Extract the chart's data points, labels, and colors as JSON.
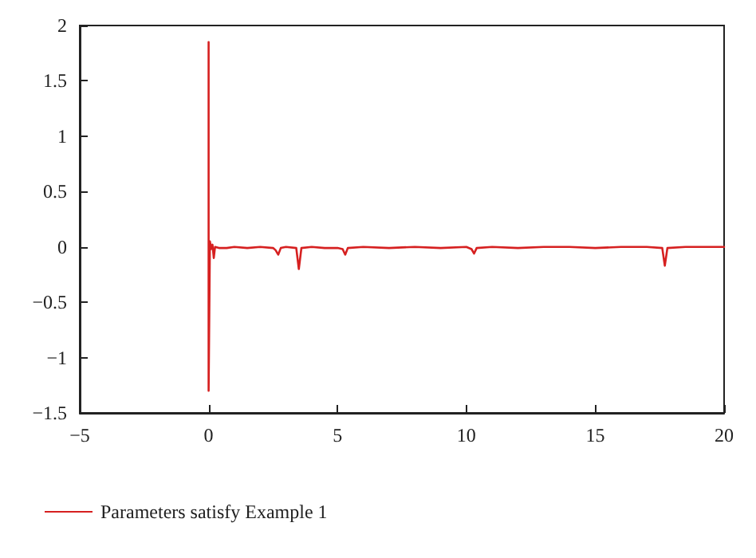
{
  "chart_data": {
    "type": "line",
    "x": [
      0,
      0,
      0,
      0.05,
      0.1,
      0.15,
      0.2,
      0.25,
      0.4,
      0.7,
      1,
      1.5,
      2,
      2.5,
      2.6,
      2.7,
      2.8,
      3,
      3.4,
      3.5,
      3.6,
      4,
      4.5,
      5,
      5.2,
      5.3,
      5.4,
      6,
      7,
      8,
      9,
      10,
      10.2,
      10.3,
      10.4,
      11,
      12,
      13,
      14,
      15,
      16,
      17,
      17.6,
      17.7,
      17.8,
      18.5,
      19,
      20
    ],
    "series": [
      {
        "name": "Parameters satisfy Example 1",
        "color": "#d62020",
        "values": [
          0.2,
          1.85,
          -1.3,
          0.05,
          -0.02,
          0.02,
          -0.1,
          0,
          -0.01,
          -0.01,
          0,
          -0.01,
          0,
          -0.01,
          -0.03,
          -0.07,
          -0.01,
          0,
          -0.01,
          -0.2,
          -0.01,
          0,
          -0.01,
          -0.01,
          -0.02,
          -0.07,
          -0.01,
          0,
          -0.01,
          0,
          -0.01,
          0,
          -0.02,
          -0.06,
          -0.01,
          0,
          -0.01,
          0,
          0,
          -0.01,
          0,
          0,
          -0.01,
          -0.17,
          -0.01,
          0,
          0,
          0
        ]
      }
    ],
    "xlim": [
      -5,
      20
    ],
    "xticks": [
      -5,
      0,
      5,
      10,
      15,
      20
    ],
    "ylim": [
      -1.5,
      2
    ],
    "yticks": [
      -1.5,
      -1,
      -0.5,
      0,
      0.5,
      1,
      1.5,
      2
    ],
    "grid": false,
    "legend": "bottom left",
    "marker": "none",
    "line_style": "solid"
  }
}
